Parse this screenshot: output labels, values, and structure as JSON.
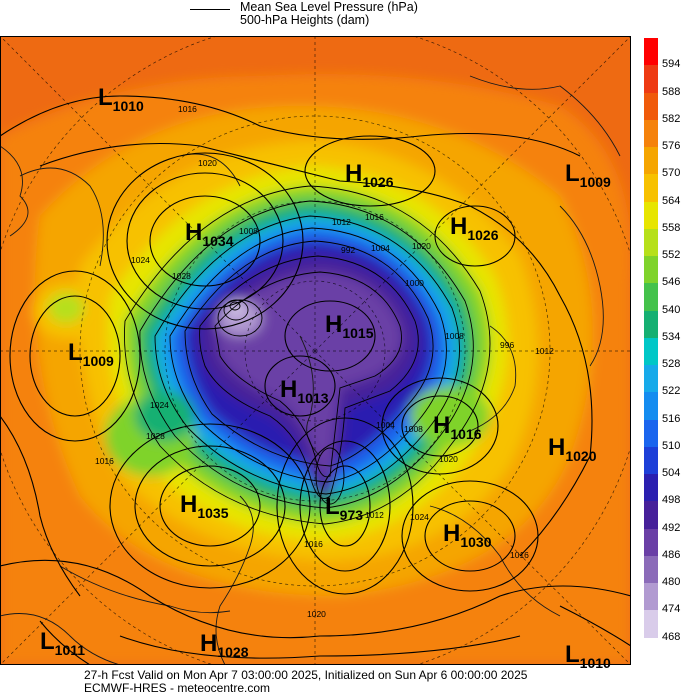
{
  "legend": {
    "mslp_label": "Mean Sea Level Pressure (hPa)",
    "height_label": "500-hPa Heights (dam)"
  },
  "colorbar": {
    "labels": [
      "594",
      "588",
      "582",
      "576",
      "570",
      "564",
      "558",
      "552",
      "546",
      "540",
      "534",
      "528",
      "522",
      "516",
      "510",
      "504",
      "498",
      "492",
      "486",
      "480",
      "474",
      "468"
    ],
    "colors": [
      "#ff0000",
      "#ee3a12",
      "#f05a0a",
      "#f5820b",
      "#f5a500",
      "#f7c100",
      "#e7e500",
      "#b6e01a",
      "#7fd32b",
      "#44c24b",
      "#15b072",
      "#00c7c7",
      "#16aaea",
      "#148cf0",
      "#1a65ee",
      "#1d3fd8",
      "#2a1fb0",
      "#46209a",
      "#6a3fa6",
      "#8b6bb9",
      "#b19ad1",
      "#d9ccea",
      "#ffffff"
    ]
  },
  "systems": [
    {
      "type": "L",
      "value": "1010"
    },
    {
      "type": "H",
      "value": "1026"
    },
    {
      "type": "L",
      "value": "1009"
    },
    {
      "type": "H",
      "value": "1034"
    },
    {
      "type": "H",
      "value": "1026"
    },
    {
      "type": "L",
      "value": "1009"
    },
    {
      "type": "H",
      "value": "1015"
    },
    {
      "type": "H",
      "value": "1013"
    },
    {
      "type": "H",
      "value": "1016"
    },
    {
      "type": "H",
      "value": "1020"
    },
    {
      "type": "H",
      "value": "1035"
    },
    {
      "type": "L",
      "value": "973"
    },
    {
      "type": "H",
      "value": "1030"
    },
    {
      "type": "L",
      "value": "1011"
    },
    {
      "type": "H",
      "value": "1028"
    },
    {
      "type": "L",
      "value": "1010"
    }
  ],
  "isobar_labels": [
    "1016",
    "1020",
    "1024",
    "1028",
    "1008",
    "1012",
    "1016",
    "1020",
    "1000",
    "992",
    "1004",
    "1008",
    "996",
    "1012",
    "1024",
    "1028",
    "1016",
    "1004",
    "1008",
    "1020",
    "1024",
    "1020",
    "1016",
    "1012",
    "1016"
  ],
  "footer": {
    "line1": "27-h Fcst Valid on Mon Apr  7 03:00:00 2025, Initialized on Sun Apr  6 00:00:00 2025",
    "line2": "ECMWF-HRES  - meteocentre.com"
  }
}
